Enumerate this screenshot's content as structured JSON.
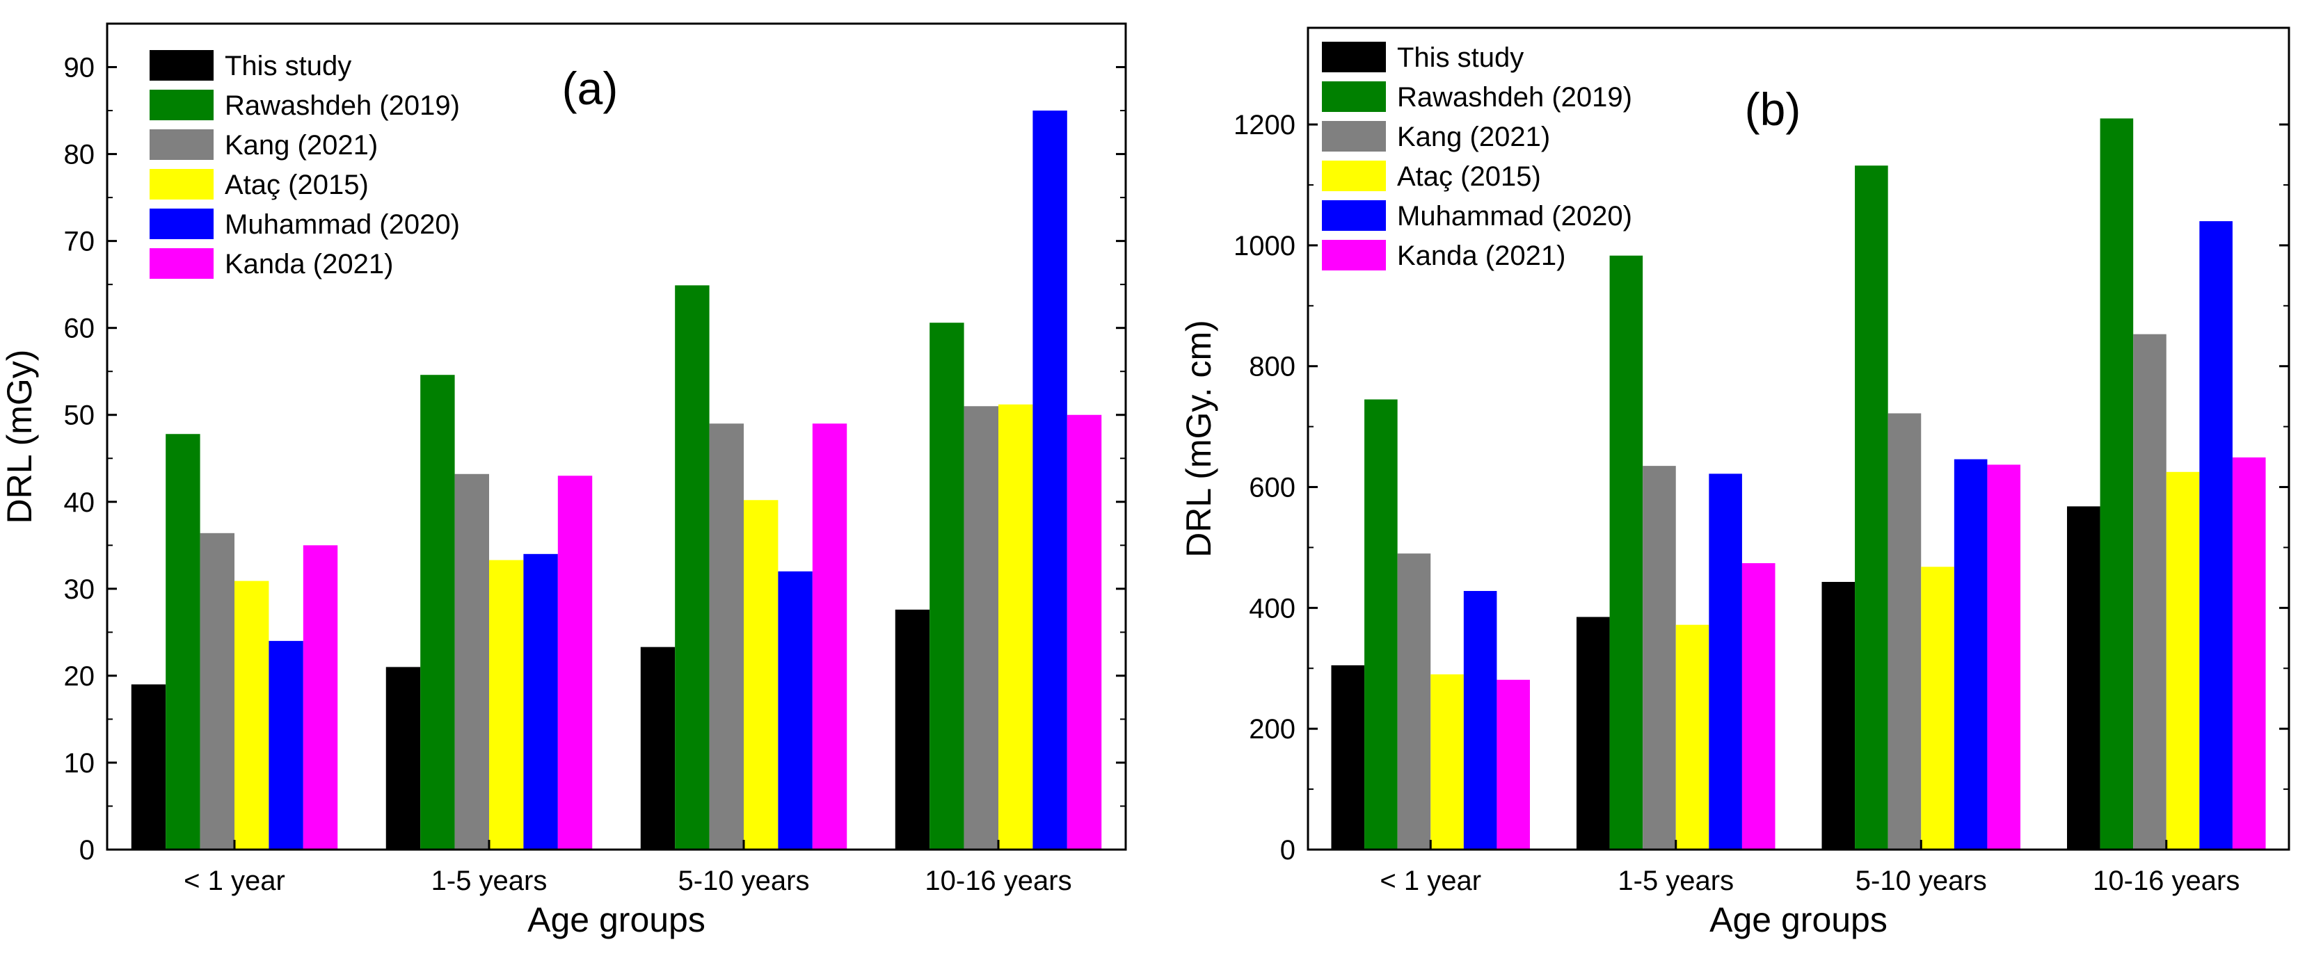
{
  "series_colors": [
    "#000000",
    "#008000",
    "#808080",
    "#ffff00",
    "#0000ff",
    "#ff00ff"
  ],
  "chart_data": [
    {
      "type": "bar",
      "panel_label": "(a)",
      "xlabel": "Age groups",
      "ylabel": "DRL (mGy)",
      "ylim": [
        0,
        95
      ],
      "yticks": [
        "0",
        "10",
        "20",
        "30",
        "40",
        "50",
        "60",
        "70",
        "80",
        "90"
      ],
      "categories": [
        "< 1 year",
        "1-5 years",
        "5-10 years",
        "10-16 years"
      ],
      "legend_position": "top-left",
      "series": [
        {
          "name": "This study",
          "values": [
            19,
            21,
            23.3,
            27.6
          ]
        },
        {
          "name": "Rawashdeh (2019)",
          "values": [
            47.8,
            54.6,
            64.9,
            60.6
          ]
        },
        {
          "name": "Kang (2021)",
          "values": [
            36.4,
            43.2,
            49,
            51
          ]
        },
        {
          "name": "Ataç (2015)",
          "values": [
            30.9,
            33.3,
            40.2,
            51.2
          ]
        },
        {
          "name": "Muhammad (2020)",
          "values": [
            24,
            34,
            32,
            85
          ]
        },
        {
          "name": "Kanda (2021)",
          "values": [
            35,
            43,
            49,
            50
          ]
        }
      ]
    },
    {
      "type": "bar",
      "panel_label": "(b)",
      "xlabel": "Age groups",
      "ylabel": "DRL (mGy. cm)",
      "ylim": [
        0,
        1360
      ],
      "yticks": [
        "0",
        "200",
        "400",
        "600",
        "800",
        "1000",
        "1200"
      ],
      "categories": [
        "< 1 year",
        "1-5 years",
        "5-10 years",
        "10-16 years"
      ],
      "legend_position": "top-left",
      "series": [
        {
          "name": "This study",
          "values": [
            305,
            385,
            443,
            568
          ]
        },
        {
          "name": "Rawashdeh (2019)",
          "values": [
            745,
            983,
            1132,
            1210
          ]
        },
        {
          "name": "Kang (2021)",
          "values": [
            490,
            635,
            722,
            853
          ]
        },
        {
          "name": "Ataç (2015)",
          "values": [
            290,
            372,
            468,
            625
          ]
        },
        {
          "name": "Muhammad (2020)",
          "values": [
            428,
            622,
            646,
            1040
          ]
        },
        {
          "name": "Kanda (2021)",
          "values": [
            281,
            474,
            637,
            649
          ]
        }
      ]
    }
  ]
}
